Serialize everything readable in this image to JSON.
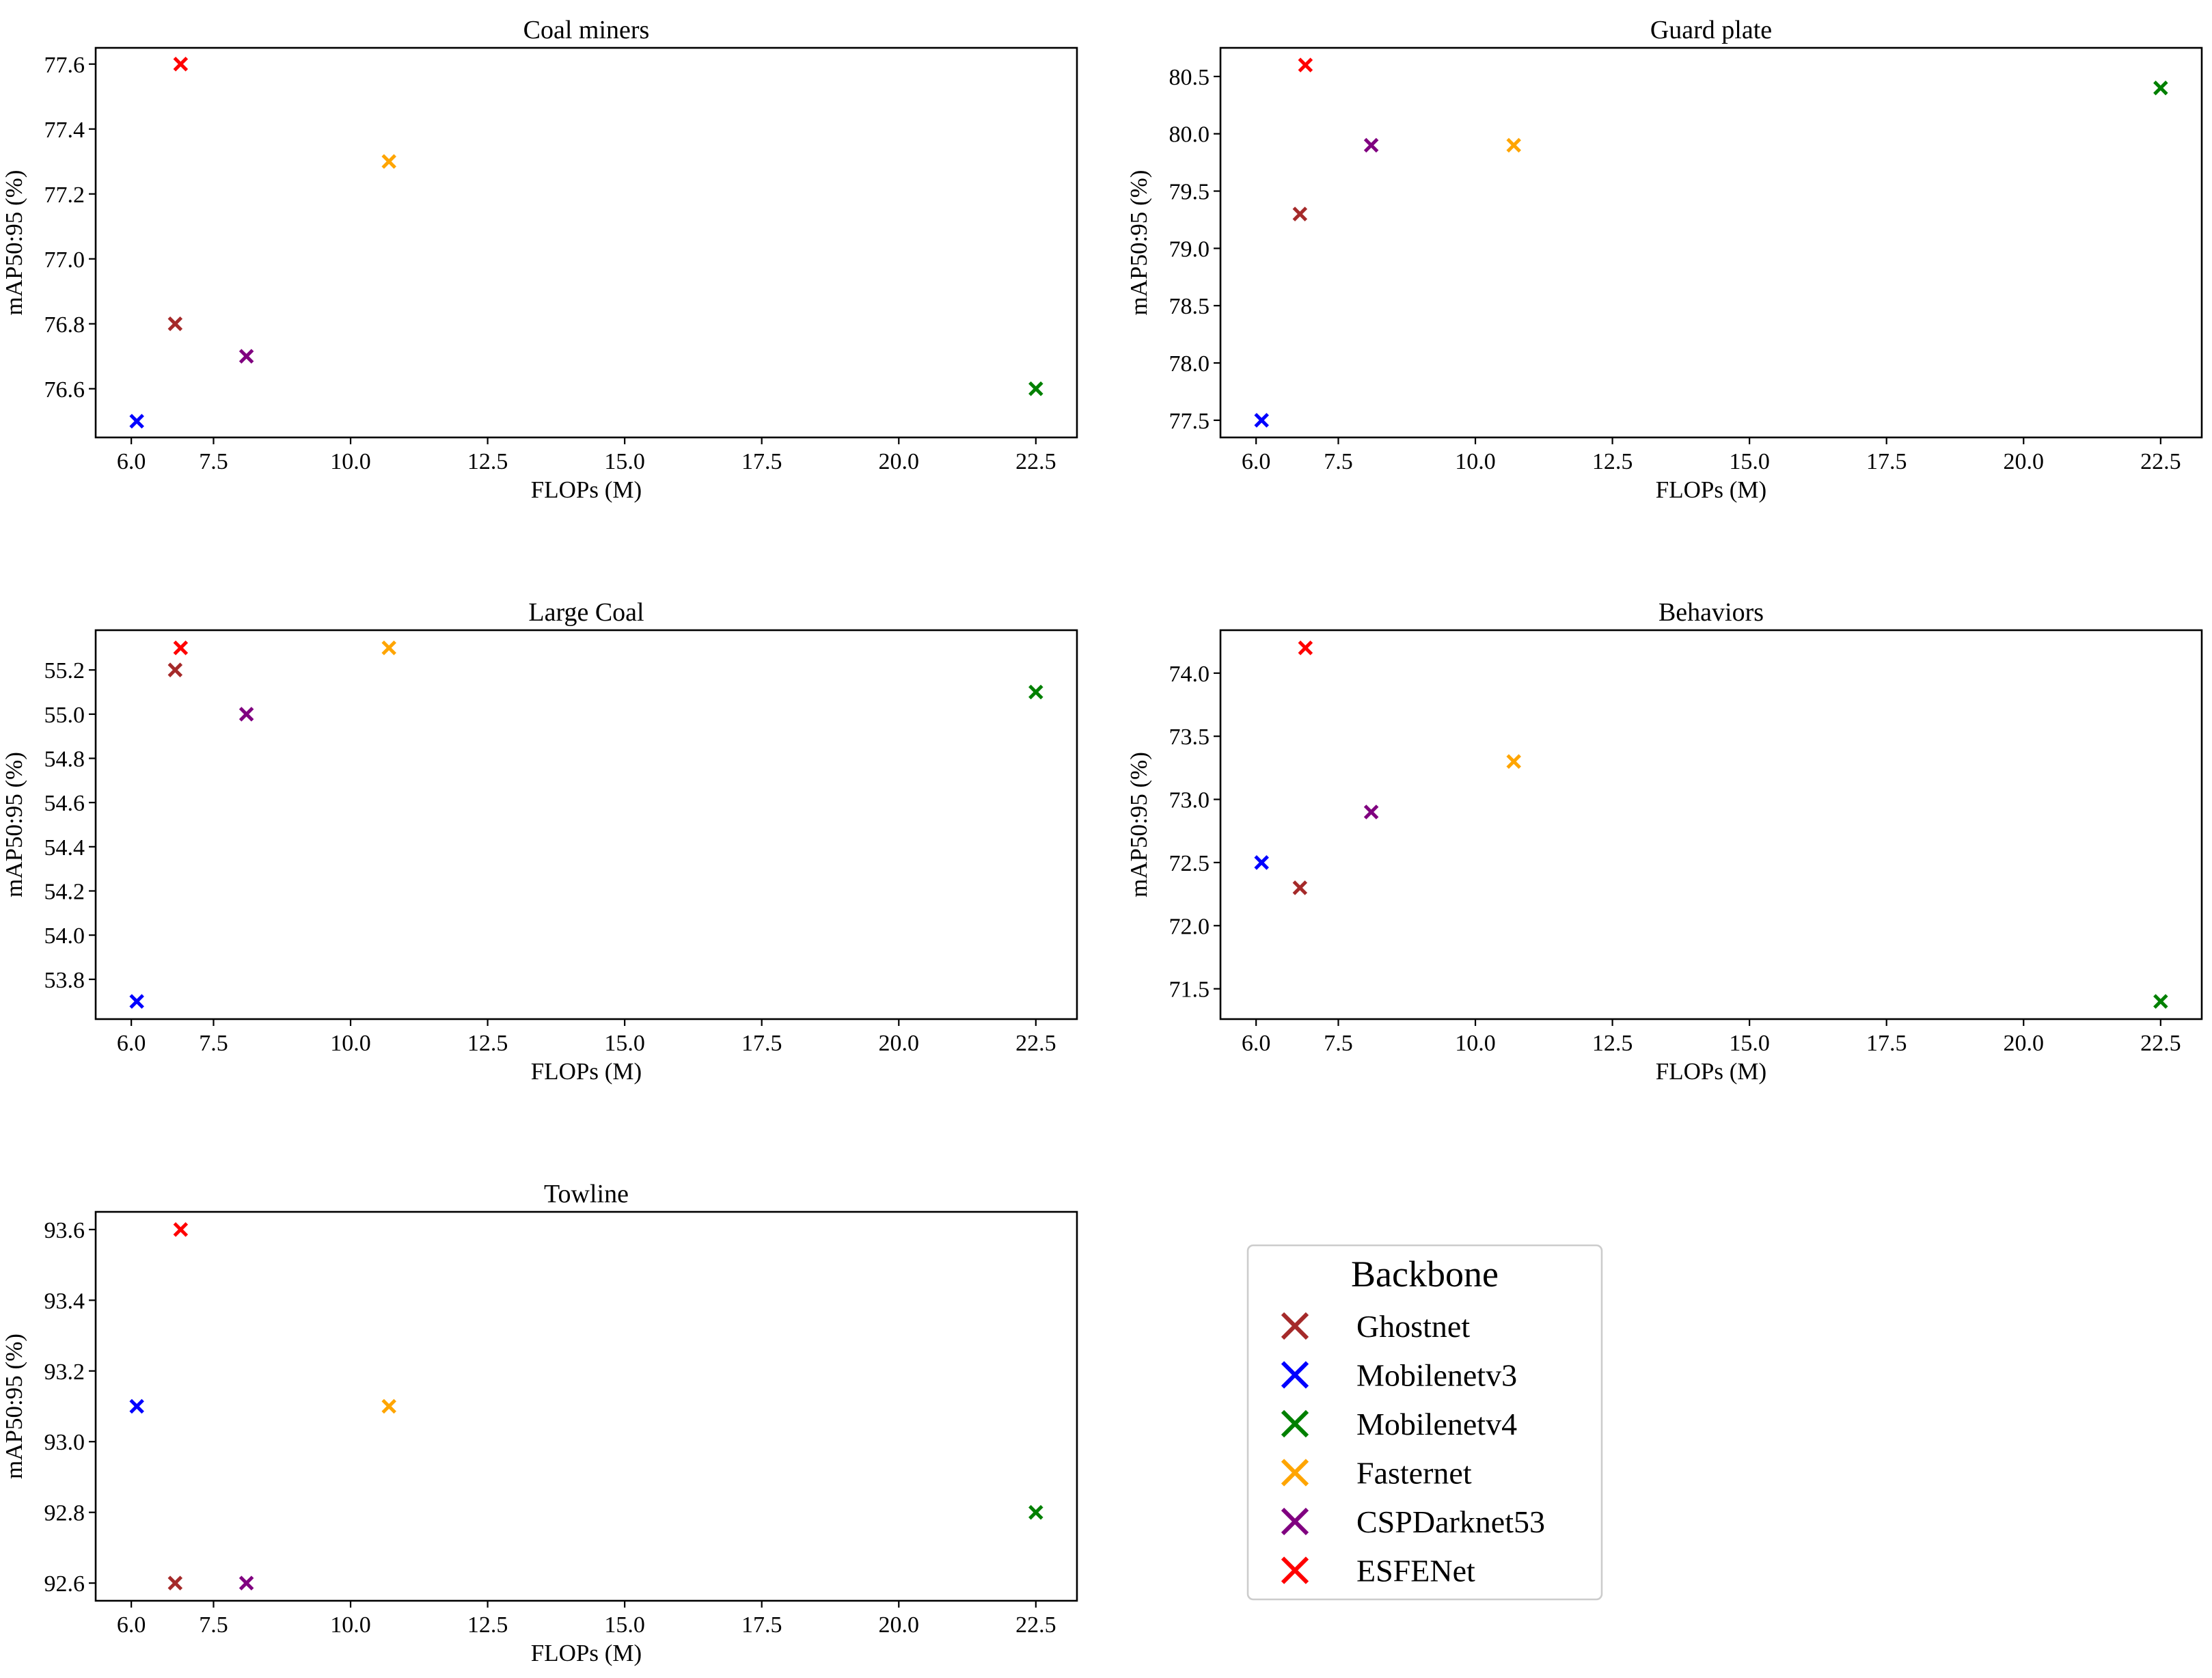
{
  "legend": {
    "title": "Backbone",
    "entries": [
      {
        "name": "Ghostnet",
        "color": "#a52a2a"
      },
      {
        "name": "Mobilenetv3",
        "color": "#0000ff"
      },
      {
        "name": "Mobilenetv4",
        "color": "#008000"
      },
      {
        "name": "Fasternet",
        "color": "#ffa500"
      },
      {
        "name": "CSPDarknet53",
        "color": "#800080"
      },
      {
        "name": "ESFENet",
        "color": "#ff0000"
      }
    ]
  },
  "chart_data": [
    {
      "type": "scatter",
      "title": "Coal miners",
      "xlabel": "FLOPs (M)",
      "ylabel": "mAP50:95 (%)",
      "xlim": [
        5.35,
        23.25
      ],
      "ylim": [
        76.45,
        77.65
      ],
      "xticks": [
        6.0,
        7.5,
        10.0,
        12.5,
        15.0,
        17.5,
        20.0,
        22.5
      ],
      "yticks": [
        76.6,
        76.8,
        77.0,
        77.2,
        77.4,
        77.6
      ],
      "ydecimals": 1,
      "series": [
        {
          "name": "Ghostnet",
          "x": 6.8,
          "y": 76.8
        },
        {
          "name": "Mobilenetv3",
          "x": 6.1,
          "y": 76.5
        },
        {
          "name": "Mobilenetv4",
          "x": 22.5,
          "y": 76.6
        },
        {
          "name": "Fasternet",
          "x": 10.7,
          "y": 77.3
        },
        {
          "name": "CSPDarknet53",
          "x": 8.1,
          "y": 76.7
        },
        {
          "name": "ESFENet",
          "x": 6.9,
          "y": 77.6
        }
      ]
    },
    {
      "type": "scatter",
      "title": "Guard plate",
      "xlabel": "FLOPs (M)",
      "ylabel": "mAP50:95 (%)",
      "xlim": [
        5.35,
        23.25
      ],
      "ylim": [
        77.35,
        80.75
      ],
      "xticks": [
        6.0,
        7.5,
        10.0,
        12.5,
        15.0,
        17.5,
        20.0,
        22.5
      ],
      "yticks": [
        77.5,
        78.0,
        78.5,
        79.0,
        79.5,
        80.0,
        80.5
      ],
      "ydecimals": 1,
      "series": [
        {
          "name": "Ghostnet",
          "x": 6.8,
          "y": 79.3
        },
        {
          "name": "Mobilenetv3",
          "x": 6.1,
          "y": 77.5
        },
        {
          "name": "Mobilenetv4",
          "x": 22.5,
          "y": 80.4
        },
        {
          "name": "Fasternet",
          "x": 10.7,
          "y": 79.9
        },
        {
          "name": "CSPDarknet53",
          "x": 8.1,
          "y": 79.9
        },
        {
          "name": "ESFENet",
          "x": 6.9,
          "y": 80.6
        }
      ]
    },
    {
      "type": "scatter",
      "title": "Large Coal",
      "xlabel": "FLOPs (M)",
      "ylabel": "mAP50:95 (%)",
      "xlim": [
        5.35,
        23.25
      ],
      "ylim": [
        53.62,
        55.38
      ],
      "xticks": [
        6.0,
        7.5,
        10.0,
        12.5,
        15.0,
        17.5,
        20.0,
        22.5
      ],
      "yticks": [
        53.8,
        54.0,
        54.2,
        54.4,
        54.6,
        54.8,
        55.0,
        55.2
      ],
      "ydecimals": 1,
      "series": [
        {
          "name": "Ghostnet",
          "x": 6.8,
          "y": 55.2
        },
        {
          "name": "Mobilenetv3",
          "x": 6.1,
          "y": 53.7
        },
        {
          "name": "Mobilenetv4",
          "x": 22.5,
          "y": 55.1
        },
        {
          "name": "Fasternet",
          "x": 10.7,
          "y": 55.3
        },
        {
          "name": "CSPDarknet53",
          "x": 8.1,
          "y": 55.0
        },
        {
          "name": "ESFENet",
          "x": 6.9,
          "y": 55.3
        }
      ]
    },
    {
      "type": "scatter",
      "title": "Behaviors",
      "xlabel": "FLOPs (M)",
      "ylabel": "mAP50:95 (%)",
      "xlim": [
        5.35,
        23.25
      ],
      "ylim": [
        71.26,
        74.34
      ],
      "xticks": [
        6.0,
        7.5,
        10.0,
        12.5,
        15.0,
        17.5,
        20.0,
        22.5
      ],
      "yticks": [
        71.5,
        72.0,
        72.5,
        73.0,
        73.5,
        74.0
      ],
      "ydecimals": 1,
      "series": [
        {
          "name": "Ghostnet",
          "x": 6.8,
          "y": 72.3
        },
        {
          "name": "Mobilenetv3",
          "x": 6.1,
          "y": 72.5
        },
        {
          "name": "Mobilenetv4",
          "x": 22.5,
          "y": 71.4
        },
        {
          "name": "Fasternet",
          "x": 10.7,
          "y": 73.3
        },
        {
          "name": "CSPDarknet53",
          "x": 8.1,
          "y": 72.9
        },
        {
          "name": "ESFENet",
          "x": 6.9,
          "y": 74.2
        }
      ]
    },
    {
      "type": "scatter",
      "title": "Towline",
      "xlabel": "FLOPs (M)",
      "ylabel": "mAP50:95 (%)",
      "xlim": [
        5.35,
        23.25
      ],
      "ylim": [
        92.55,
        93.65
      ],
      "xticks": [
        6.0,
        7.5,
        10.0,
        12.5,
        15.0,
        17.5,
        20.0,
        22.5
      ],
      "yticks": [
        92.6,
        92.8,
        93.0,
        93.2,
        93.4,
        93.6
      ],
      "ydecimals": 1,
      "series": [
        {
          "name": "Ghostnet",
          "x": 6.8,
          "y": 92.6
        },
        {
          "name": "Mobilenetv3",
          "x": 6.1,
          "y": 93.1
        },
        {
          "name": "Mobilenetv4",
          "x": 22.5,
          "y": 92.8
        },
        {
          "name": "Fasternet",
          "x": 10.7,
          "y": 93.1
        },
        {
          "name": "CSPDarknet53",
          "x": 8.1,
          "y": 92.6
        },
        {
          "name": "ESFENet",
          "x": 6.9,
          "y": 93.6
        }
      ]
    }
  ]
}
